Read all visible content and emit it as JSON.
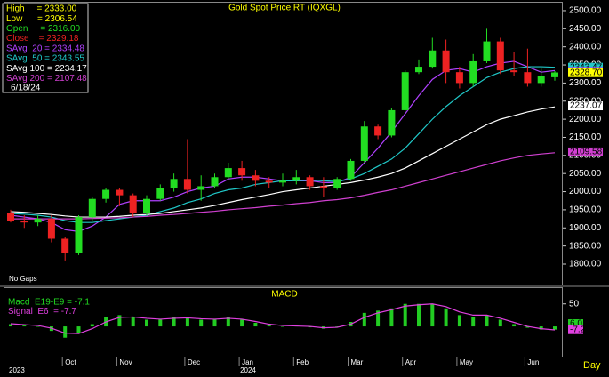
{
  "chart_data": [
    {
      "type": "candlestick",
      "title": "Gold Spot Price,RT  (IQXGL)",
      "note": "No Gaps",
      "date_label": "6/18/24",
      "categories": [
        null,
        null,
        null,
        null,
        "Oct",
        null,
        null,
        null,
        "Nov",
        null,
        null,
        null,
        null,
        "Dec",
        null,
        null,
        null,
        "Jan",
        null,
        null,
        null,
        "Feb",
        null,
        null,
        null,
        "Mar",
        null,
        null,
        null,
        "Apr",
        null,
        null,
        null,
        "May",
        null,
        null,
        null,
        null,
        "Jun",
        null,
        null
      ],
      "years": [
        "2023",
        "2024"
      ],
      "open": [
        1940,
        1920,
        1915,
        1925,
        1870,
        1830,
        1930,
        1980,
        2005,
        1990,
        1940,
        1980,
        2010,
        2035,
        2005,
        2015,
        2040,
        2065,
        2045,
        2030,
        2025,
        2030,
        2040,
        2015,
        2010,
        2035,
        2085,
        2180,
        2155,
        2225,
        2330,
        2345,
        2390,
        2330,
        2300,
        2360,
        2415,
        2335,
        2330,
        2300,
        2316
      ],
      "high": [
        1950,
        1935,
        1935,
        1935,
        1875,
        1935,
        1985,
        2010,
        2010,
        1995,
        1990,
        2020,
        2050,
        2145,
        2045,
        2050,
        2080,
        2085,
        2060,
        2040,
        2050,
        2060,
        2045,
        2040,
        2040,
        2090,
        2195,
        2185,
        2230,
        2335,
        2365,
        2425,
        2420,
        2345,
        2380,
        2450,
        2425,
        2385,
        2395,
        2340,
        2333
      ],
      "low": [
        1915,
        1900,
        1905,
        1860,
        1810,
        1825,
        1920,
        1970,
        1960,
        1930,
        1935,
        1975,
        2000,
        1995,
        1975,
        2010,
        2035,
        2030,
        2015,
        2010,
        2015,
        2020,
        2005,
        1985,
        2005,
        2030,
        2080,
        2145,
        2150,
        2220,
        2325,
        2340,
        2300,
        2285,
        2290,
        2355,
        2325,
        2320,
        2290,
        2290,
        2306.54
      ],
      "close": [
        1920,
        1915,
        1925,
        1870,
        1830,
        1930,
        1980,
        2005,
        1990,
        1940,
        1980,
        2010,
        2035,
        2005,
        2015,
        2040,
        2065,
        2045,
        2030,
        2025,
        2030,
        2040,
        2015,
        2010,
        2035,
        2085,
        2180,
        2155,
        2225,
        2330,
        2345,
        2390,
        2330,
        2300,
        2360,
        2415,
        2335,
        2330,
        2300,
        2320,
        2329.18
      ],
      "up_color": "#22dd22",
      "down_color": "#ee2222",
      "overlays": [
        {
          "color": "#b040ff",
          "values": [
            1935,
            1930,
            1925,
            1915,
            1895,
            1890,
            1905,
            1930,
            1965,
            1975,
            1975,
            1975,
            1985,
            2000,
            2010,
            2015,
            2035,
            2040,
            2040,
            2035,
            2030,
            2030,
            2030,
            2025,
            2025,
            2040,
            2080,
            2120,
            2165,
            2215,
            2265,
            2310,
            2335,
            2340,
            2330,
            2345,
            2355,
            2360,
            2345,
            2330,
            2334.48
          ]
        },
        {
          "color": "#20c8c8",
          "values": [
            1940,
            1938,
            1935,
            1930,
            1920,
            1915,
            1915,
            1920,
            1925,
            1930,
            1935,
            1945,
            1955,
            1970,
            1980,
            1995,
            2005,
            2010,
            2020,
            2025,
            2030,
            2030,
            2032,
            2030,
            2028,
            2035,
            2050,
            2070,
            2090,
            2120,
            2160,
            2200,
            2235,
            2265,
            2290,
            2315,
            2330,
            2340,
            2345,
            2345,
            2343.55
          ]
        },
        {
          "color": "#ffffff",
          "values": [
            1945,
            1943,
            1940,
            1937,
            1933,
            1930,
            1930,
            1930,
            1932,
            1935,
            1937,
            1940,
            1945,
            1950,
            1955,
            1962,
            1970,
            1978,
            1985,
            1992,
            2000,
            2005,
            2010,
            2015,
            2020,
            2025,
            2032,
            2040,
            2050,
            2065,
            2085,
            2105,
            2125,
            2145,
            2165,
            2185,
            2200,
            2210,
            2220,
            2228,
            2234.17
          ]
        },
        {
          "color": "#d040d0",
          "values": [
            1925,
            1925,
            1925,
            1925,
            1925,
            1925,
            1926,
            1927,
            1928,
            1930,
            1932,
            1935,
            1937,
            1940,
            1943,
            1946,
            1950,
            1953,
            1956,
            1960,
            1963,
            1967,
            1970,
            1975,
            1978,
            1983,
            1990,
            1998,
            2005,
            2015,
            2025,
            2035,
            2045,
            2055,
            2065,
            2075,
            2085,
            2093,
            2100,
            2104,
            2107.48
          ]
        }
      ],
      "legend": [
        {
          "text": "High     = 2333.00",
          "color": "#ffff00"
        },
        {
          "text": "Low      = 2306.54",
          "color": "#ffff00"
        },
        {
          "text": "Open     = 2316.00",
          "color": "#22dd22"
        },
        {
          "text": "Close    = 2329.18",
          "color": "#ee2222"
        },
        {
          "text": "SAvg  20 = 2334.48",
          "color": "#b040ff"
        },
        {
          "text": "SAvg  50 = 2343.55",
          "color": "#20c8c8"
        },
        {
          "text": "SAvg 100 = 2234.17",
          "color": "#ffffff"
        },
        {
          "text": "SAvg 200 = 2107.48",
          "color": "#d040d0"
        }
      ],
      "ylim": [
        1743.5,
        2522
      ],
      "yticks": [
        {
          "value": 1800,
          "label": "1800.00"
        },
        {
          "value": 1850,
          "label": "1850.00"
        },
        {
          "value": 1900,
          "label": "1900.00"
        },
        {
          "value": 1950,
          "label": "1950.00"
        },
        {
          "value": 2000,
          "label": "2000.00"
        },
        {
          "value": 2050,
          "label": "2050.00"
        },
        {
          "value": 2100,
          "label": "2100.00"
        },
        {
          "value": 2150,
          "label": "2150.00"
        },
        {
          "value": 2200,
          "label": "2200.00"
        },
        {
          "value": 2250,
          "label": "2250.00"
        },
        {
          "value": 2300,
          "label": "2300.00"
        },
        {
          "value": 2350,
          "label": "2350.00"
        },
        {
          "value": 2400,
          "label": "2400.00"
        },
        {
          "value": 2450,
          "label": "2450.00"
        },
        {
          "value": 2500,
          "label": "2500.00"
        }
      ],
      "axis_markers": [
        {
          "value": 2343.47,
          "label": "2343.47",
          "color": "#20c8c8"
        },
        {
          "value": 2332.01,
          "label": "2332.01",
          "color": "#b040ff"
        },
        {
          "value": 2328.7,
          "label": "2328.70",
          "color": "#ffff00"
        },
        {
          "value": 2237.07,
          "label": "2237.07",
          "color": "#ffffff"
        },
        {
          "value": 2109.58,
          "label": "2109.58",
          "color": "#d040d0"
        }
      ],
      "x_unit": "Day"
    },
    {
      "type": "macd",
      "title": "MACD",
      "values": [
        5,
        2,
        0,
        -10,
        -25,
        -15,
        5,
        20,
        25,
        20,
        15,
        15,
        20,
        20,
        15,
        15,
        20,
        15,
        8,
        2,
        0,
        2,
        -2,
        -5,
        0,
        10,
        30,
        35,
        40,
        50,
        50,
        50,
        40,
        25,
        20,
        25,
        15,
        5,
        -3,
        -7,
        -7.1
      ],
      "signal": [
        6,
        4,
        2,
        -4,
        -15,
        -16,
        -5,
        10,
        20,
        21,
        18,
        16,
        18,
        19,
        17,
        16,
        18,
        16,
        11,
        5,
        2,
        1,
        0,
        -3,
        -2,
        5,
        20,
        30,
        37,
        45,
        48,
        50,
        44,
        32,
        25,
        25,
        18,
        9,
        0,
        -5,
        -7.7
      ],
      "color": "#22cc22",
      "signal_color": "#e040e0",
      "legend": [
        {
          "text": "Macd  E19-E9 = -7.1",
          "color": "#22dd22"
        },
        {
          "text": "Signal  E6  = -7.7",
          "color": "#e040e0"
        }
      ],
      "ylim": [
        -65,
        85
      ],
      "yticks": [
        50
      ],
      "axis_markers": [
        {
          "value": 6.0,
          "label": "6.0",
          "color": "#22cc22"
        },
        {
          "value": -7.2,
          "label": "-7.2",
          "color": "#e040e0"
        }
      ]
    }
  ]
}
